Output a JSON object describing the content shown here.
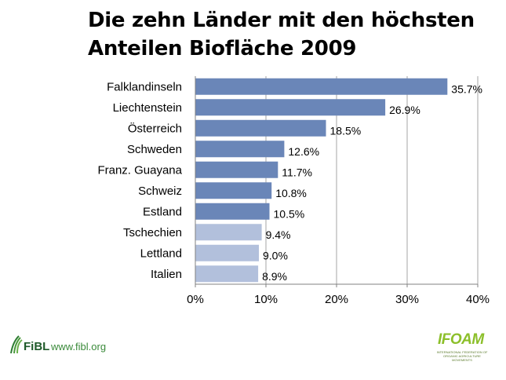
{
  "chart_data": {
    "type": "bar",
    "orientation": "horizontal",
    "title": "Die zehn Länder mit den höchsten Anteilen Biofläche 2009",
    "title_lines": [
      "Die zehn Länder mit den höchsten",
      "Anteilen Biofläche 2009"
    ],
    "categories": [
      "Falklandinseln",
      "Liechtenstein",
      "Österreich",
      "Schweden",
      "Franz. Guayana",
      "Schweiz",
      "Estland",
      "Tschechien",
      "Lettland",
      "Italien"
    ],
    "values": [
      35.7,
      26.9,
      18.5,
      12.6,
      11.7,
      10.8,
      10.5,
      9.4,
      9.0,
      8.9
    ],
    "value_labels": [
      "35.7%",
      "26.9%",
      "18.5%",
      "12.6%",
      "11.7%",
      "10.8%",
      "10.5%",
      "9.4%",
      "9.0%",
      "8.9%"
    ],
    "xlim": [
      0,
      40
    ],
    "xticks": [
      0,
      10,
      20,
      30,
      40
    ],
    "xtick_labels": [
      "0%",
      "10%",
      "20%",
      "30%",
      "40%"
    ],
    "xlabel": "",
    "ylabel": "",
    "grid": "vertical",
    "legend": "none",
    "colors": {
      "dark": "#6a86b8",
      "light": "#b2c0dc",
      "grid": "#a6a6a6",
      "axis": "#808080"
    },
    "bar_shade": [
      "dark",
      "dark",
      "dark",
      "dark",
      "dark",
      "dark",
      "dark",
      "light",
      "light",
      "light"
    ]
  },
  "footer": {
    "fibl_logo_text": "FiBL",
    "fibl_url": "www.fibl.org",
    "ifoam_logo_text": "IFOAM",
    "ifoam_subtitle": "INTERNATIONAL FEDERATION OF ORGANIC AGRICULTURE MOVEMENTS"
  }
}
